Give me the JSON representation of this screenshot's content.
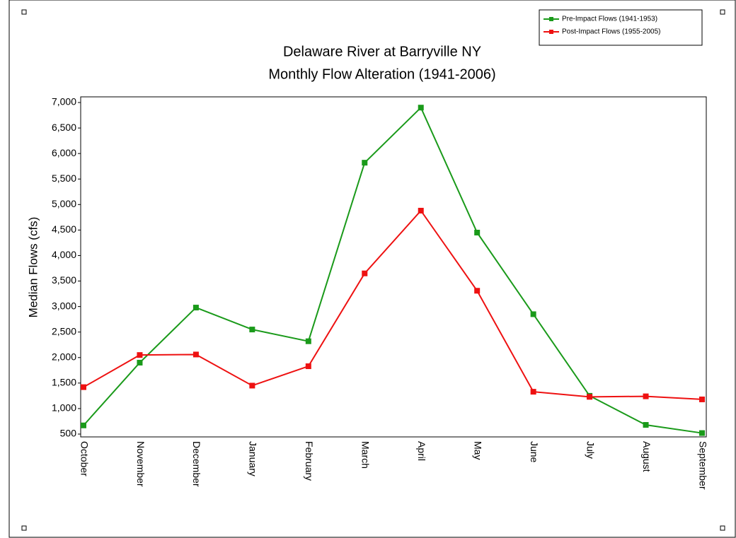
{
  "chart_data": {
    "type": "line",
    "title": "Delaware River at Barryville NY",
    "subtitle": "Monthly Flow Alteration (1941-2006)",
    "y_label": "Median Flows (cfs)",
    "categories": [
      "October",
      "November",
      "December",
      "January",
      "February",
      "March",
      "April",
      "May",
      "June",
      "July",
      "August",
      "September"
    ],
    "series": [
      {
        "name": "Pre-Impact Flows (1941-1953)",
        "color": "#1a9a1a",
        "values": [
          670,
          1900,
          2980,
          2550,
          2320,
          5820,
          6900,
          4450,
          2850,
          1250,
          680,
          520
        ]
      },
      {
        "name": "Post-Impact Flows (1955-2005)",
        "color": "#ee1111",
        "values": [
          1420,
          2050,
          2060,
          1450,
          1830,
          3650,
          4880,
          3310,
          1330,
          1230,
          1240,
          1180
        ]
      }
    ],
    "ylim": [
      500,
      7000
    ],
    "yticks": [
      500,
      {
        "value": 1000,
        "label": "1,000"
      },
      {
        "value": 1500,
        "label": "1,500"
      },
      {
        "value": 2000,
        "label": "2,000"
      },
      {
        "value": 2500,
        "label": "2,500"
      },
      {
        "value": 3000,
        "label": "3,000"
      },
      {
        "value": 3500,
        "label": "3,500"
      },
      {
        "value": 4000,
        "label": "4,000"
      },
      {
        "value": 4500,
        "label": "4,500"
      },
      {
        "value": 5000,
        "label": "5,000"
      },
      {
        "value": 5500,
        "label": "5,500"
      },
      {
        "value": 6000,
        "label": "6,000"
      },
      {
        "value": 6500,
        "label": "6,500"
      },
      {
        "value": 7000,
        "label": "7,000"
      }
    ],
    "grid": false,
    "legend": "top-right"
  }
}
